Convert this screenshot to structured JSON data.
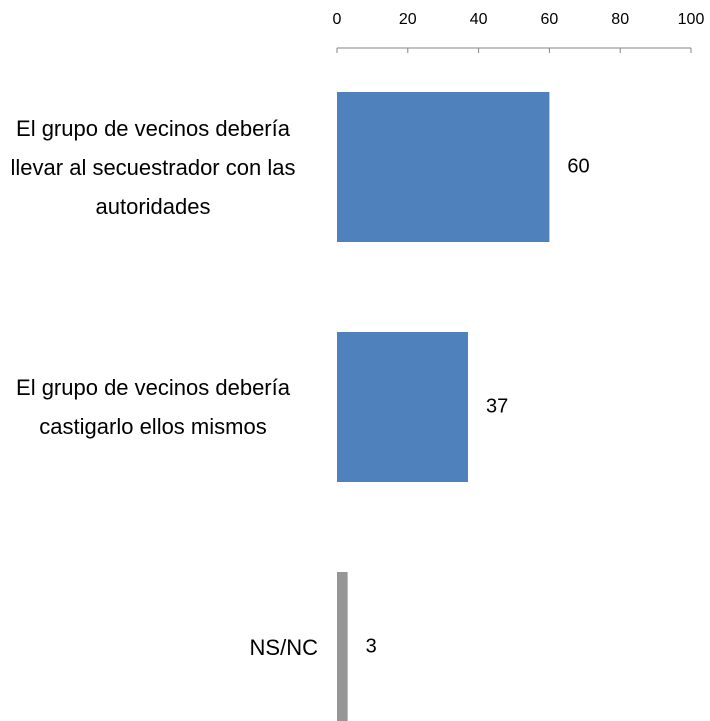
{
  "chart_data": {
    "type": "bar",
    "orientation": "horizontal",
    "categories": [
      "El grupo de vecinos debería llevar al secuestrador con las autoridades",
      "El grupo de vecinos debería castigarlo ellos mismos",
      "NS/NC"
    ],
    "values": [
      60,
      37,
      3
    ],
    "colors": [
      "#4f81bd",
      "#4f81bd",
      "#969696"
    ],
    "xlim": [
      0,
      100
    ],
    "xticks": [
      0,
      20,
      40,
      60,
      80,
      100
    ],
    "grid": false
  }
}
